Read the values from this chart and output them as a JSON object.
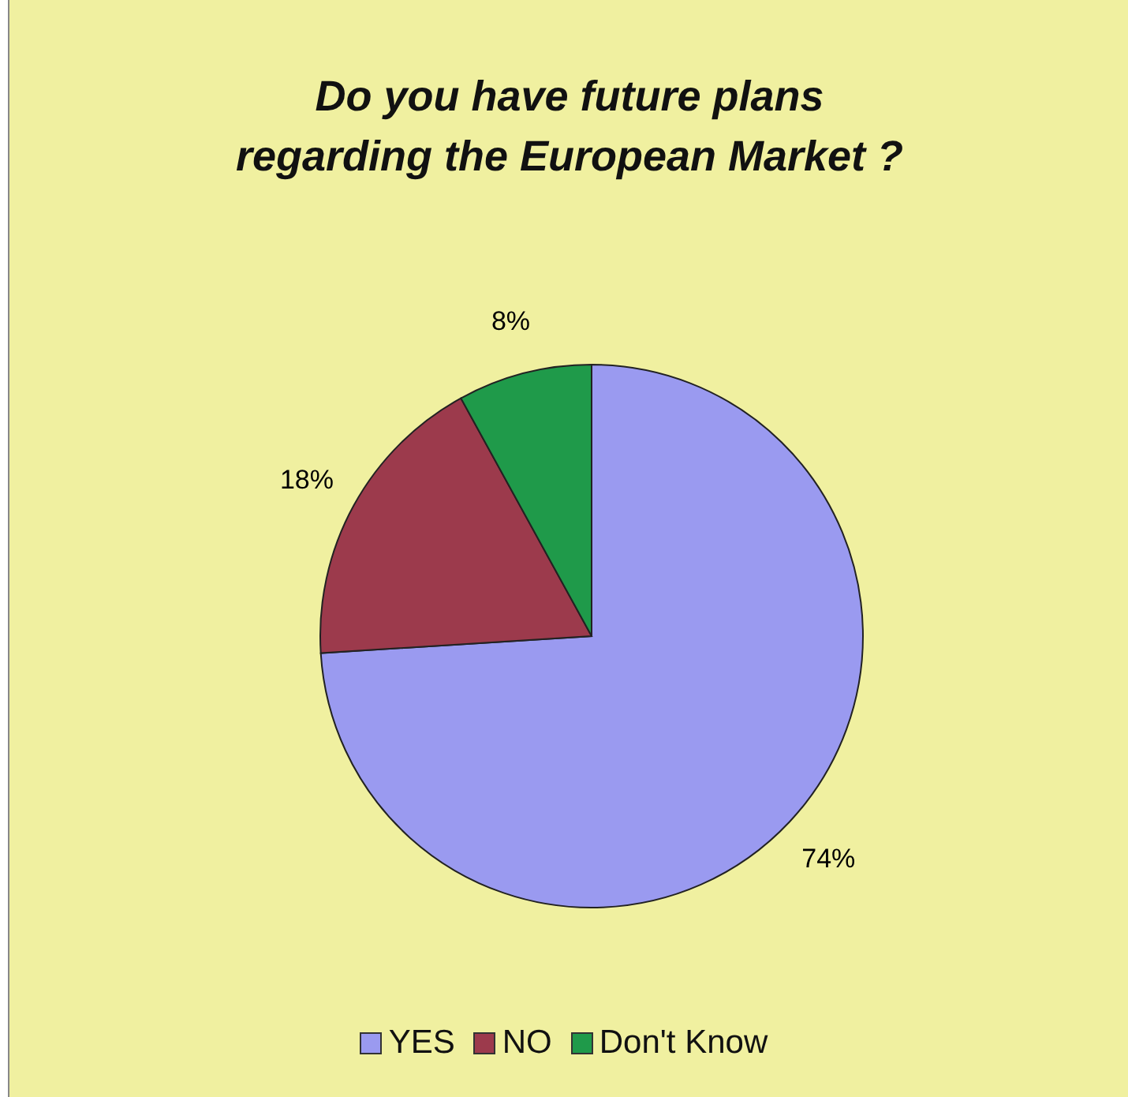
{
  "chart_data": {
    "type": "pie",
    "title": "Do you have future plans regarding the European Market ?",
    "categories": [
      "YES",
      "NO",
      "Don't Know"
    ],
    "values": [
      74,
      18,
      8
    ],
    "colors": [
      "#9a9af0",
      "#9c3a4c",
      "#1f9a4a"
    ],
    "value_labels": [
      "74%",
      "18%",
      "8%"
    ],
    "legend": "bottom"
  }
}
